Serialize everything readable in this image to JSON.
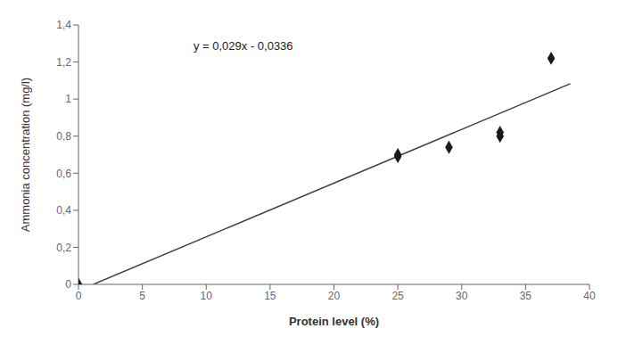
{
  "chart_data": {
    "type": "scatter",
    "xlabel": "Protein level (%)",
    "ylabel": "Ammonia concentration (mg/l)",
    "series": [
      {
        "type": "scatter",
        "color": "#1a1a1a",
        "marker": "diamond",
        "x": [
          0,
          25,
          25,
          29,
          33,
          33,
          37
        ],
        "values": [
          0.0,
          0.69,
          0.7,
          0.74,
          0.8,
          0.82,
          1.22
        ]
      },
      {
        "type": "line",
        "color": "#404040",
        "line_style": "solid",
        "x": [
          1.16,
          38.5
        ],
        "values": [
          4e-05,
          1.0829
        ]
      }
    ],
    "annotations": [
      {
        "text": "y = 0,029x - 0,0336",
        "x": 9,
        "y": 1.33
      }
    ],
    "xlim": [
      0,
      40
    ],
    "ylim": [
      0,
      1.4
    ],
    "xticks": [
      0,
      5,
      10,
      15,
      20,
      25,
      30,
      35,
      40
    ],
    "yticks": [
      0,
      {
        "value": 0.2,
        "label": "0,2"
      },
      {
        "value": 0.4,
        "label": "0,4"
      },
      {
        "value": 0.6,
        "label": "0,6"
      },
      {
        "value": 0.8,
        "label": "0,8"
      },
      1,
      {
        "value": 1.2,
        "label": "1,2"
      },
      {
        "value": 1.4,
        "label": "1,4"
      }
    ]
  }
}
